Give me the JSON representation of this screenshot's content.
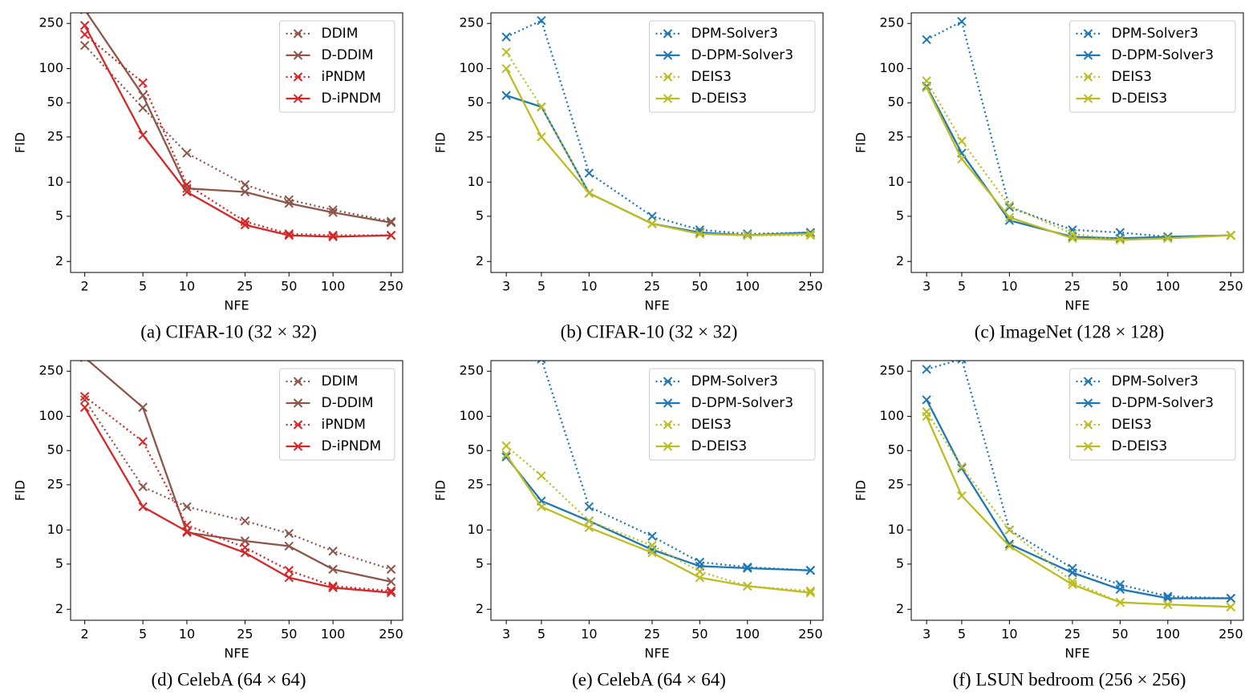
{
  "chart_data": [
    {
      "type": "line",
      "caption": "(a) CIFAR-10 (32 × 32)",
      "xlabel": "NFE",
      "ylabel": "FID",
      "xscale": "log",
      "yscale": "log",
      "legend": "upper right",
      "x": [
        2,
        5,
        10,
        25,
        50,
        100,
        250
      ],
      "xlim": [
        1.6,
        300
      ],
      "ylim": [
        1.6,
        310
      ],
      "xticks": [
        2,
        5,
        10,
        25,
        50,
        100,
        250
      ],
      "yticks": [
        2,
        5,
        10,
        25,
        50,
        100,
        250
      ],
      "series": [
        {
          "name": "DDIM",
          "color": "#8c564b",
          "linestyle": "dotted",
          "values": [
            160,
            45,
            18,
            9.5,
            7,
            5.7,
            4.5
          ]
        },
        {
          "name": "D-DDIM",
          "color": "#8c564b",
          "linestyle": "solid",
          "values": [
            330,
            58,
            8.8,
            8.2,
            6.5,
            5.4,
            4.4
          ]
        },
        {
          "name": "iPNDM",
          "color": "#d62728",
          "linestyle": "dotted",
          "values": [
            200,
            75,
            9.5,
            4.5,
            3.5,
            3.4,
            3.4
          ]
        },
        {
          "name": "D-iPNDM",
          "color": "#d62728",
          "linestyle": "solid",
          "values": [
            240,
            26,
            8.2,
            4.2,
            3.4,
            3.3,
            3.4
          ]
        }
      ]
    },
    {
      "type": "line",
      "caption": "(b) CIFAR-10 (32 × 32)",
      "xlabel": "NFE",
      "ylabel": "FID",
      "xscale": "log",
      "yscale": "log",
      "legend": "upper right",
      "x": [
        3,
        5,
        10,
        25,
        50,
        100,
        250
      ],
      "xlim": [
        2.4,
        300
      ],
      "ylim": [
        1.6,
        310
      ],
      "xticks": [
        3,
        5,
        10,
        25,
        50,
        100,
        250
      ],
      "yticks": [
        2,
        5,
        10,
        25,
        50,
        100,
        250
      ],
      "series": [
        {
          "name": "DPM-Solver3",
          "color": "#1f77b4",
          "linestyle": "dotted",
          "values": [
            190,
            265,
            12,
            5,
            3.8,
            3.5,
            3.6
          ]
        },
        {
          "name": "D-DPM-Solver3",
          "color": "#1f77b4",
          "linestyle": "solid",
          "values": [
            58,
            46,
            8,
            4.3,
            3.6,
            3.4,
            3.6
          ]
        },
        {
          "name": "DEIS3",
          "color": "#bcbd22",
          "linestyle": "dotted",
          "values": [
            140,
            46,
            8,
            4.3,
            3.5,
            3.4,
            3.4
          ]
        },
        {
          "name": "D-DEIS3",
          "color": "#bcbd22",
          "linestyle": "solid",
          "values": [
            100,
            25,
            8,
            4.3,
            3.5,
            3.4,
            3.5
          ]
        }
      ]
    },
    {
      "type": "line",
      "caption": "(c) ImageNet (128 × 128)",
      "xlabel": "NFE",
      "ylabel": "FID",
      "xscale": "log",
      "yscale": "log",
      "legend": "upper right",
      "x": [
        3,
        5,
        10,
        25,
        50,
        100,
        250
      ],
      "xlim": [
        2.4,
        300
      ],
      "ylim": [
        1.6,
        310
      ],
      "xticks": [
        3,
        5,
        10,
        25,
        50,
        100,
        250
      ],
      "yticks": [
        2,
        5,
        10,
        25,
        50,
        100,
        250
      ],
      "series": [
        {
          "name": "DPM-Solver3",
          "color": "#1f77b4",
          "linestyle": "dotted",
          "values": [
            180,
            260,
            6,
            3.8,
            3.6,
            3.3,
            3.4
          ]
        },
        {
          "name": "D-DPM-Solver3",
          "color": "#1f77b4",
          "linestyle": "solid",
          "values": [
            70,
            18,
            4.6,
            3.3,
            3.2,
            3.3,
            3.4
          ]
        },
        {
          "name": "DEIS3",
          "color": "#bcbd22",
          "linestyle": "dotted",
          "values": [
            78,
            23,
            6.2,
            3.5,
            3.1,
            3.2,
            3.4
          ]
        },
        {
          "name": "D-DEIS3",
          "color": "#bcbd22",
          "linestyle": "solid",
          "values": [
            68,
            16,
            4.9,
            3.2,
            3.1,
            3.2,
            3.4
          ]
        }
      ]
    },
    {
      "type": "line",
      "caption": "(d) CelebA (64 × 64)",
      "xlabel": "NFE",
      "ylabel": "FID",
      "xscale": "log",
      "yscale": "log",
      "legend": "upper right",
      "x": [
        2,
        5,
        10,
        25,
        50,
        100,
        250
      ],
      "xlim": [
        1.6,
        300
      ],
      "ylim": [
        1.6,
        310
      ],
      "xticks": [
        2,
        5,
        10,
        25,
        50,
        100,
        250
      ],
      "yticks": [
        2,
        5,
        10,
        25,
        50,
        100,
        250
      ],
      "series": [
        {
          "name": "DDIM",
          "color": "#8c564b",
          "linestyle": "dotted",
          "values": [
            140,
            24,
            16,
            12,
            9.3,
            6.5,
            4.5
          ]
        },
        {
          "name": "D-DDIM",
          "color": "#8c564b",
          "linestyle": "solid",
          "values": [
            330,
            120,
            9.5,
            8,
            7.2,
            4.5,
            3.5
          ]
        },
        {
          "name": "iPNDM",
          "color": "#d62728",
          "linestyle": "dotted",
          "values": [
            150,
            60,
            11,
            7,
            4.4,
            3.2,
            2.9
          ]
        },
        {
          "name": "D-iPNDM",
          "color": "#d62728",
          "linestyle": "solid",
          "values": [
            120,
            16,
            9.7,
            6.3,
            3.8,
            3.1,
            2.8
          ]
        }
      ]
    },
    {
      "type": "line",
      "caption": "(e) CelebA (64 × 64)",
      "xlabel": "NFE",
      "ylabel": "FID",
      "xscale": "log",
      "yscale": "log",
      "legend": "upper right",
      "x": [
        3,
        5,
        10,
        25,
        50,
        100,
        250
      ],
      "xlim": [
        2.4,
        300
      ],
      "ylim": [
        1.6,
        310
      ],
      "xticks": [
        3,
        5,
        10,
        25,
        50,
        100,
        250
      ],
      "yticks": [
        2,
        5,
        10,
        25,
        50,
        100,
        250
      ],
      "series": [
        {
          "name": "DPM-Solver3",
          "color": "#1f77b4",
          "linestyle": "dotted",
          "values": [
            1000,
            320,
            16,
            8.8,
            5.2,
            4.7,
            4.4
          ]
        },
        {
          "name": "D-DPM-Solver3",
          "color": "#1f77b4",
          "linestyle": "solid",
          "values": [
            44,
            18,
            12,
            6.7,
            4.8,
            4.6,
            4.4
          ]
        },
        {
          "name": "DEIS3",
          "color": "#bcbd22",
          "linestyle": "dotted",
          "values": [
            55,
            30,
            12,
            7.3,
            4.3,
            3.2,
            2.9
          ]
        },
        {
          "name": "D-DEIS3",
          "color": "#bcbd22",
          "linestyle": "solid",
          "values": [
            46,
            16,
            10.5,
            6.3,
            3.8,
            3.2,
            2.8
          ]
        }
      ]
    },
    {
      "type": "line",
      "caption": "(f) LSUN bedroom (256 × 256)",
      "xlabel": "NFE",
      "ylabel": "FID",
      "xscale": "log",
      "yscale": "log",
      "legend": "upper right",
      "x": [
        3,
        5,
        10,
        25,
        50,
        100,
        250
      ],
      "xlim": [
        2.4,
        300
      ],
      "ylim": [
        1.6,
        310
      ],
      "xticks": [
        3,
        5,
        10,
        25,
        50,
        100,
        250
      ],
      "yticks": [
        2,
        5,
        10,
        25,
        50,
        100,
        250
      ],
      "series": [
        {
          "name": "DPM-Solver3",
          "color": "#1f77b4",
          "linestyle": "dotted",
          "values": [
            260,
            320,
            10,
            4.6,
            3.3,
            2.6,
            2.5
          ]
        },
        {
          "name": "D-DPM-Solver3",
          "color": "#1f77b4",
          "linestyle": "solid",
          "values": [
            140,
            35,
            7.5,
            4.2,
            3,
            2.5,
            2.5
          ]
        },
        {
          "name": "DEIS3",
          "color": "#bcbd22",
          "linestyle": "dotted",
          "values": [
            110,
            36,
            10,
            3.5,
            2.3,
            2.2,
            2.1
          ]
        },
        {
          "name": "D-DEIS3",
          "color": "#bcbd22",
          "linestyle": "solid",
          "values": [
            100,
            20,
            7.2,
            3.3,
            2.3,
            2.2,
            2.1
          ]
        }
      ]
    }
  ]
}
